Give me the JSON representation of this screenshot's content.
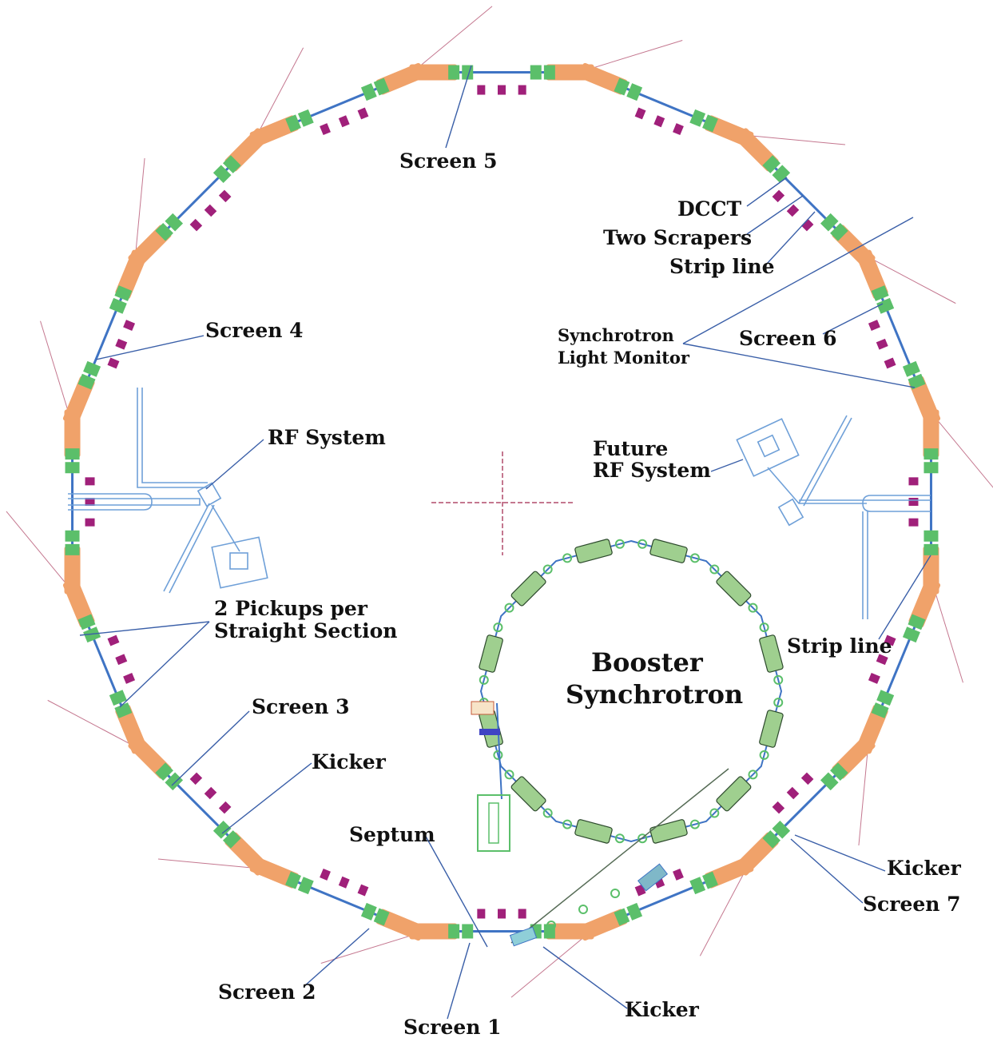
{
  "labels": {
    "screen_1": "Screen 1",
    "screen_2": "Screen 2",
    "screen_3": "Screen 3",
    "screen_4": "Screen 4",
    "screen_5": "Screen 5",
    "screen_6": "Screen 6",
    "screen_7": "Screen 7",
    "dcct": "DCCT",
    "two_scrapers": "Two Scrapers",
    "strip_line_top": "Strip line",
    "strip_line_right": "Strip line",
    "synchrotron_light_monitor_line1": "Synchrotron",
    "synchrotron_light_monitor_line2": "Light Monitor",
    "rf_system": "RF System",
    "future_rf_line1": "Future",
    "future_rf_line2": "RF System",
    "pickups_line1": "2 Pickups per",
    "pickups_line2": "Straight Section",
    "kicker_left": "Kicker",
    "kicker_bottom": "Kicker",
    "kicker_right": "Kicker",
    "septum": "Septum",
    "booster_line1": "Booster",
    "booster_line2": "Synchrotron"
  },
  "colors": {
    "beam_pipe": "#3f74c4",
    "bending_magnet": "#f0a26a",
    "quadrupole": "#5bbf6a",
    "sextupole": "#a0207a",
    "booster_magnet": "#9fcf8f",
    "tangent_line": "#b04a6a"
  }
}
